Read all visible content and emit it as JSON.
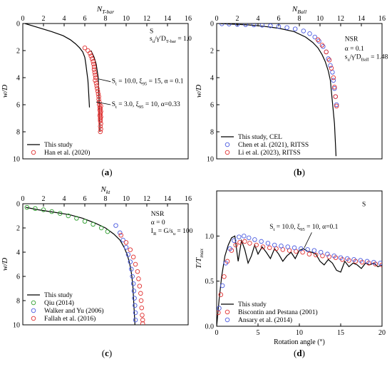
{
  "chart_data": [
    {
      "type": "line",
      "panel_label": "(a)",
      "xlabel": "N_T-bar",
      "ylabel": "w/D",
      "xlim": [
        0,
        16
      ],
      "ylim": [
        10,
        0
      ],
      "x_axis_position": "top",
      "y_inverted": true,
      "xticks": [
        "0",
        "2",
        "4",
        "6",
        "8",
        "10",
        "12",
        "14",
        "16"
      ],
      "yticks": [
        "0",
        "2",
        "4",
        "6",
        "8",
        "10"
      ],
      "annotations": [
        {
          "text": "S",
          "x": 14.6,
          "y": 0.7
        },
        {
          "text": "s_u/γ′D_T-bar = 1.0",
          "x": 14.6,
          "y": 1.25
        },
        {
          "text": "S_t = 10.0, ξ_95 = 15, α = 0.1",
          "x": 8.6,
          "y": 4.4
        },
        {
          "text": "S_t = 3.0, ξ_95 = 10, α=0.33",
          "x": 8.6,
          "y": 6.1
        }
      ],
      "legend": {
        "position": "bottom-left",
        "entries": [
          "This study",
          "Han et al. (2020)"
        ]
      },
      "series": [
        {
          "name": "This study",
          "style": "line",
          "color": "#000000",
          "x": [
            0.2,
            1.5,
            2.8,
            3.9,
            4.6,
            5.1,
            5.5,
            5.8,
            6.0,
            6.1,
            6.2,
            6.3,
            6.35,
            6.4,
            6.45
          ],
          "y": [
            0,
            0.3,
            0.6,
            0.9,
            1.2,
            1.5,
            1.8,
            2.1,
            2.5,
            3.0,
            3.6,
            4.2,
            4.8,
            5.5,
            6.2
          ]
        },
        {
          "name": "This study",
          "style": "line",
          "color": "#000000",
          "x": [
            6.6,
            6.9,
            7.1,
            7.2,
            7.3,
            7.35,
            7.4,
            7.4,
            7.45,
            7.45
          ],
          "y": [
            2.0,
            2.5,
            3.0,
            3.5,
            4.0,
            5.0,
            6.0,
            6.8,
            7.5,
            8.0
          ]
        },
        {
          "name": "Han et al. (2020)",
          "style": "marker",
          "color": "#e03030",
          "x": [
            6.0,
            6.3,
            6.5,
            6.6,
            6.7,
            6.8,
            6.85,
            6.9,
            6.9,
            6.95,
            7.0,
            7.05,
            7.0,
            7.1,
            7.15,
            7.2,
            7.25,
            7.3,
            7.35,
            7.35,
            7.4,
            7.4,
            7.45,
            7.45,
            7.5,
            7.45,
            7.5,
            7.5,
            7.55,
            7.5,
            7.55,
            7.5,
            7.55,
            7.5,
            7.55,
            7.5,
            7.55,
            7.5
          ],
          "y": [
            1.8,
            2.0,
            2.2,
            2.4,
            2.6,
            2.8,
            3.0,
            3.2,
            3.4,
            3.6,
            3.8,
            4.0,
            4.2,
            4.4,
            4.6,
            4.8,
            5.0,
            5.2,
            5.4,
            5.6,
            5.8,
            6.0,
            6.2,
            6.4,
            6.6,
            6.8,
            7.0,
            7.2,
            7.4,
            7.6,
            7.8,
            8.0,
            6.1,
            6.3,
            6.5,
            6.7,
            6.9,
            7.1
          ]
        }
      ]
    },
    {
      "type": "line",
      "panel_label": "(b)",
      "xlabel": "N_Ball",
      "ylabel": "w/D",
      "xlim": [
        0,
        16
      ],
      "ylim": [
        10,
        0
      ],
      "x_axis_position": "top",
      "y_inverted": true,
      "xticks": [
        "0",
        "2",
        "4",
        "6",
        "8",
        "10",
        "12",
        "14",
        "16"
      ],
      "yticks": [
        "0",
        "2",
        "4",
        "6",
        "8",
        "10"
      ],
      "annotations": [
        {
          "text": "NSR",
          "x": 12.4,
          "y": 1.3
        },
        {
          "text": "α = 0.1",
          "x": 12.4,
          "y": 2.0
        },
        {
          "text": "s_u/γ′D_Ball = 1.48",
          "x": 12.4,
          "y": 2.6
        }
      ],
      "legend": {
        "position": "bottom-left",
        "entries": [
          "This study, CEL",
          "Chen et al. (2021), RITSS",
          "Li et al. (2023), RITSS"
        ]
      },
      "series": [
        {
          "name": "This study, CEL",
          "style": "line",
          "color": "#000000",
          "x": [
            0.2,
            1.5,
            3.0,
            4.5,
            6.0,
            7.5,
            8.6,
            9.3,
            9.8,
            10.2,
            10.5,
            10.8,
            11.0,
            11.1,
            11.2,
            11.3,
            11.4,
            11.45,
            11.5,
            11.55
          ],
          "y": [
            0,
            0.05,
            0.1,
            0.2,
            0.35,
            0.6,
            1.0,
            1.4,
            1.8,
            2.3,
            2.8,
            3.5,
            4.2,
            5.0,
            5.8,
            6.6,
            7.4,
            8.2,
            9.0,
            9.8
          ]
        },
        {
          "name": "Chen et al. (2021), RITSS",
          "style": "marker",
          "color": "#4a5ae0",
          "x": [
            0.5,
            1.2,
            2.0,
            2.8,
            3.6,
            4.4,
            5.2,
            6.0,
            6.8,
            7.6,
            8.4,
            9.0,
            9.5,
            9.9,
            10.3,
            10.6,
            10.8,
            11.0,
            11.2,
            11.3,
            11.4,
            11.5,
            11.6
          ],
          "y": [
            0.02,
            0.04,
            0.06,
            0.08,
            0.1,
            0.13,
            0.17,
            0.22,
            0.3,
            0.4,
            0.55,
            0.75,
            1.0,
            1.3,
            1.7,
            2.1,
            2.6,
            3.1,
            3.6,
            4.2,
            4.8,
            5.4,
            6.0
          ]
        },
        {
          "name": "Li et al. (2023), RITSS",
          "style": "marker",
          "color": "#e03030",
          "x": [
            9.8,
            10.2,
            10.6,
            10.9,
            11.1,
            11.3,
            11.4,
            11.5,
            11.6
          ],
          "y": [
            1.2,
            1.6,
            2.1,
            2.7,
            3.3,
            4.0,
            4.7,
            5.4,
            6.1
          ]
        }
      ]
    },
    {
      "type": "line",
      "panel_label": "(c)",
      "xlabel": "N_kt",
      "ylabel": "w/D",
      "xlim": [
        0,
        16
      ],
      "ylim": [
        10,
        0
      ],
      "x_axis_position": "top",
      "y_inverted": true,
      "xticks": [
        "0",
        "2",
        "4",
        "6",
        "8",
        "10",
        "12",
        "14",
        "16"
      ],
      "yticks": [
        "0",
        "2",
        "4",
        "6",
        "8",
        "10"
      ],
      "annotations": [
        {
          "text": "NSR",
          "x": 12.4,
          "y": 1.0
        },
        {
          "text": "α = 0",
          "x": 12.4,
          "y": 1.7
        },
        {
          "text": "I_R = G/s_u = 100",
          "x": 12.4,
          "y": 2.4
        }
      ],
      "legend": {
        "position": "bottom-left",
        "entries": [
          "This study",
          "Qiu (2014)",
          "Walker and Yu (2006)",
          "Fallah et al. (2016)"
        ]
      },
      "series": [
        {
          "name": "This study",
          "style": "line",
          "color": "#000000",
          "x": [
            0.3,
            1.5,
            3.0,
            4.5,
            5.8,
            7.0,
            8.0,
            8.8,
            9.4,
            9.8,
            10.1,
            10.3,
            10.45,
            10.55,
            10.65,
            10.7,
            10.75,
            10.8,
            10.85
          ],
          "y": [
            0.3,
            0.5,
            0.7,
            0.9,
            1.2,
            1.6,
            2.0,
            2.5,
            3.0,
            3.6,
            4.2,
            4.8,
            5.4,
            6.0,
            6.8,
            7.6,
            8.4,
            9.2,
            10.0
          ]
        },
        {
          "name": "Qiu (2014)",
          "style": "marker",
          "color": "#30a030",
          "x": [
            0.4,
            1.2,
            2.0,
            2.8,
            3.6,
            4.4,
            5.2,
            6.0,
            6.8,
            7.6,
            8.2
          ],
          "y": [
            0.3,
            0.4,
            0.5,
            0.65,
            0.8,
            1.0,
            1.2,
            1.45,
            1.7,
            2.0,
            2.3
          ]
        },
        {
          "name": "Walker and Yu (2006)",
          "style": "marker",
          "color": "#4a5ae0",
          "x": [
            9.0,
            9.4,
            9.7,
            10.0,
            10.2,
            10.4,
            10.5,
            10.6,
            10.7,
            10.75,
            10.8,
            10.85,
            10.9,
            10.9
          ],
          "y": [
            1.8,
            2.4,
            3.0,
            3.6,
            4.2,
            4.8,
            5.4,
            6.0,
            6.6,
            7.2,
            7.8,
            8.4,
            9.0,
            9.6
          ]
        },
        {
          "name": "Fallah et al. (2016)",
          "style": "marker",
          "color": "#e03030",
          "x": [
            9.5,
            10.0,
            10.4,
            10.7,
            10.9,
            11.1,
            11.2,
            11.3,
            11.4,
            11.45,
            11.5,
            11.55,
            11.6,
            11.6
          ],
          "y": [
            2.6,
            3.2,
            3.8,
            4.4,
            5.0,
            5.6,
            6.2,
            6.8,
            7.4,
            8.0,
            8.6,
            9.2,
            9.6,
            9.9
          ]
        }
      ]
    },
    {
      "type": "line",
      "panel_label": "(d)",
      "xlabel": "Rotation angle (°)",
      "ylabel": "T/T_max",
      "xlim": [
        0,
        20
      ],
      "ylim": [
        0,
        1.5
      ],
      "x_axis_position": "bottom",
      "y_inverted": false,
      "xticks": [
        "0",
        "5",
        "10",
        "15",
        "20"
      ],
      "yticks": [
        "0.0",
        "0.5",
        "1.0"
      ],
      "annotations": [
        {
          "text": "S",
          "x": 17.8,
          "y": 1.33
        },
        {
          "text": "S_t = 10.0, ξ_95 = 10, α=0.1",
          "x": 6.4,
          "y": 1.08
        }
      ],
      "legend": {
        "position": "bottom-left",
        "entries": [
          "This study",
          "Biscontin and Pestana (2001)",
          "Ansary et al. (2014)"
        ]
      },
      "series": [
        {
          "name": "This study",
          "style": "line",
          "color": "#000000",
          "x": [
            0,
            0.3,
            0.6,
            1.0,
            1.4,
            1.8,
            2.2,
            2.6,
            3.0,
            3.4,
            3.8,
            4.2,
            4.6,
            5.0,
            5.5,
            6.0,
            6.5,
            7.0,
            7.5,
            8.0,
            8.5,
            9.0,
            9.5,
            10.0,
            10.5,
            11.0,
            11.5,
            12.0,
            12.5,
            13.0,
            13.5,
            14.0,
            14.5,
            15.0,
            15.5,
            16.0,
            16.5,
            17.0,
            17.5,
            18.0,
            18.5,
            19.0,
            19.5,
            20.0
          ],
          "y": [
            0,
            0.3,
            0.55,
            0.78,
            0.9,
            0.98,
            1.0,
            0.72,
            0.95,
            0.85,
            0.7,
            0.78,
            0.9,
            0.8,
            0.88,
            0.82,
            0.75,
            0.86,
            0.8,
            0.72,
            0.78,
            0.82,
            0.75,
            0.84,
            0.86,
            0.83,
            0.82,
            0.8,
            0.72,
            0.68,
            0.74,
            0.7,
            0.62,
            0.6,
            0.72,
            0.66,
            0.7,
            0.68,
            0.64,
            0.7,
            0.68,
            0.7,
            0.66,
            0.68
          ]
        },
        {
          "name": "Biscontin and Pestana (2001)",
          "style": "marker",
          "color": "#e03030",
          "x": [
            0.2,
            0.5,
            0.9,
            1.3,
            1.8,
            2.3,
            2.8,
            3.4,
            4.0,
            4.8,
            5.6,
            6.4,
            7.2,
            8.0,
            8.8,
            9.6,
            10.4,
            11.2,
            12.0,
            12.8,
            13.6,
            14.4,
            15.2,
            16.0,
            16.8,
            17.6,
            18.4,
            19.2,
            20.0
          ],
          "y": [
            0.15,
            0.35,
            0.55,
            0.72,
            0.84,
            0.9,
            0.93,
            0.94,
            0.92,
            0.9,
            0.88,
            0.87,
            0.86,
            0.85,
            0.84,
            0.83,
            0.82,
            0.8,
            0.79,
            0.78,
            0.77,
            0.76,
            0.74,
            0.73,
            0.72,
            0.71,
            0.7,
            0.69,
            0.68
          ]
        },
        {
          "name": "Ansary et al. (2014)",
          "style": "marker",
          "color": "#4a5ae0",
          "x": [
            0.3,
            0.7,
            1.1,
            1.6,
            2.1,
            2.7,
            3.3,
            3.9,
            4.6,
            5.4,
            6.2,
            7.0,
            7.8,
            8.6,
            9.4,
            10.2,
            11.0,
            11.8,
            12.6,
            13.4,
            14.2,
            15.0,
            15.8,
            16.6,
            17.4,
            18.2,
            19.0,
            19.8
          ],
          "y": [
            0.2,
            0.45,
            0.7,
            0.86,
            0.95,
            0.99,
            1.0,
            0.98,
            0.96,
            0.94,
            0.92,
            0.9,
            0.89,
            0.88,
            0.87,
            0.86,
            0.85,
            0.84,
            0.82,
            0.8,
            0.78,
            0.76,
            0.75,
            0.74,
            0.73,
            0.72,
            0.71,
            0.7
          ]
        }
      ]
    }
  ]
}
